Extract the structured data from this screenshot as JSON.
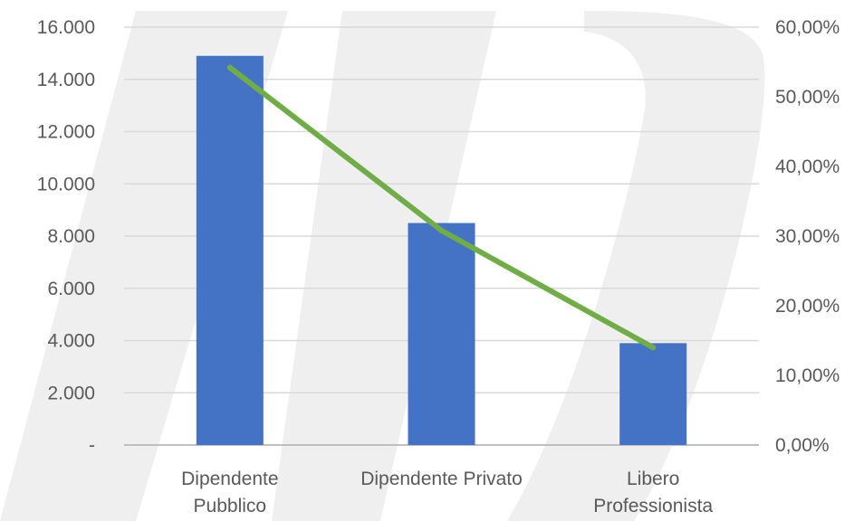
{
  "chart_data": {
    "type": "bar",
    "categories": [
      [
        "Dipendente",
        "Pubblico"
      ],
      [
        "Dipendente Privato"
      ],
      [
        "Libero",
        "Professionista"
      ]
    ],
    "series": [
      {
        "chart_type": "bar",
        "axis": "left",
        "values": [
          14900,
          8500,
          3900
        ],
        "color": "#4472c4"
      },
      {
        "chart_type": "line",
        "axis": "right",
        "values": [
          54.2,
          30.8,
          14.0
        ],
        "color": "#70ad47"
      }
    ],
    "y_left": {
      "ticks": [
        0,
        2000,
        4000,
        6000,
        8000,
        10000,
        12000,
        14000,
        16000
      ],
      "tick_labels": [
        "-",
        "2.000",
        "4.000",
        "6.000",
        "8.000",
        "10.000",
        "12.000",
        "14.000",
        "16.000"
      ],
      "ylim": [
        0,
        16000
      ]
    },
    "y_right": {
      "ticks": [
        0,
        10,
        20,
        30,
        40,
        50,
        60
      ],
      "tick_labels": [
        "0,00%",
        "10,00%",
        "20,00%",
        "30,00%",
        "40,00%",
        "50,00%",
        "60,00%"
      ],
      "ylim": [
        0,
        60
      ]
    },
    "grid": true,
    "legend": "none",
    "title": "",
    "xlabel": "",
    "ylabel": ""
  }
}
